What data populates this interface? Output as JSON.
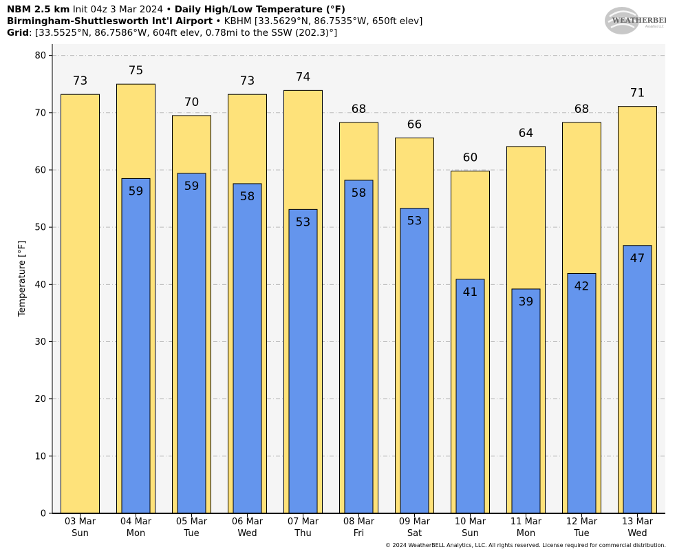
{
  "header": {
    "line1": {
      "model": "NBM 2.5 km",
      "init": "Init 04z 3 Mar 2024",
      "sep": "•",
      "product": "Daily High/Low Temperature (°F)"
    },
    "line2": {
      "station": "Birmingham-Shuttlesworth Int'l Airport",
      "sep": "•",
      "details": "KBHM [33.5629°N, 86.7535°W, 650ft elev]"
    },
    "line3": {
      "label": "Grid",
      "details": ": [33.5525°N, 86.7586°W, 604ft elev, 0.78mi to the SSW (202.3)°]"
    }
  },
  "logo": {
    "text_main": "WEATHERBELL",
    "text_sub": "Analytics LLC"
  },
  "copyright": "© 2024 WeatherBELL Analytics, LLC. All rights reserved. License required for commercial distribution.",
  "colors": {
    "high": "#fee27a",
    "low": "#6495ed",
    "plot_bg": "#f5f5f5",
    "grid": "#bbbbbb"
  },
  "chart_data": {
    "type": "bar",
    "title": "Daily High/Low Temperature (°F)",
    "ylabel": "Temperature [°F]",
    "xlabel": "",
    "ylim": [
      0,
      82
    ],
    "yticks": [
      0,
      10,
      20,
      30,
      40,
      50,
      60,
      70,
      80
    ],
    "grid": "horizontal dashed",
    "categories": [
      {
        "date": "03 Mar",
        "day": "Sun"
      },
      {
        "date": "04 Mar",
        "day": "Mon"
      },
      {
        "date": "05 Mar",
        "day": "Tue"
      },
      {
        "date": "06 Mar",
        "day": "Wed"
      },
      {
        "date": "07 Mar",
        "day": "Thu"
      },
      {
        "date": "08 Mar",
        "day": "Fri"
      },
      {
        "date": "09 Mar",
        "day": "Sat"
      },
      {
        "date": "10 Mar",
        "day": "Sun"
      },
      {
        "date": "11 Mar",
        "day": "Mon"
      },
      {
        "date": "12 Mar",
        "day": "Tue"
      },
      {
        "date": "13 Mar",
        "day": "Wed"
      }
    ],
    "series": [
      {
        "key": "high",
        "values": [
          73.2,
          75.0,
          69.5,
          73.2,
          73.9,
          68.3,
          65.6,
          59.8,
          64.1,
          68.3,
          71.1
        ],
        "labels": [
          "73",
          "75",
          "70",
          "73",
          "74",
          "68",
          "66",
          "60",
          "64",
          "68",
          "71"
        ]
      },
      {
        "key": "low",
        "values": [
          null,
          58.5,
          59.4,
          57.6,
          53.1,
          58.2,
          53.3,
          40.9,
          39.2,
          41.9,
          46.8
        ],
        "labels": [
          "",
          "59",
          "59",
          "58",
          "53",
          "58",
          "53",
          "41",
          "39",
          "42",
          "47"
        ]
      }
    ]
  }
}
